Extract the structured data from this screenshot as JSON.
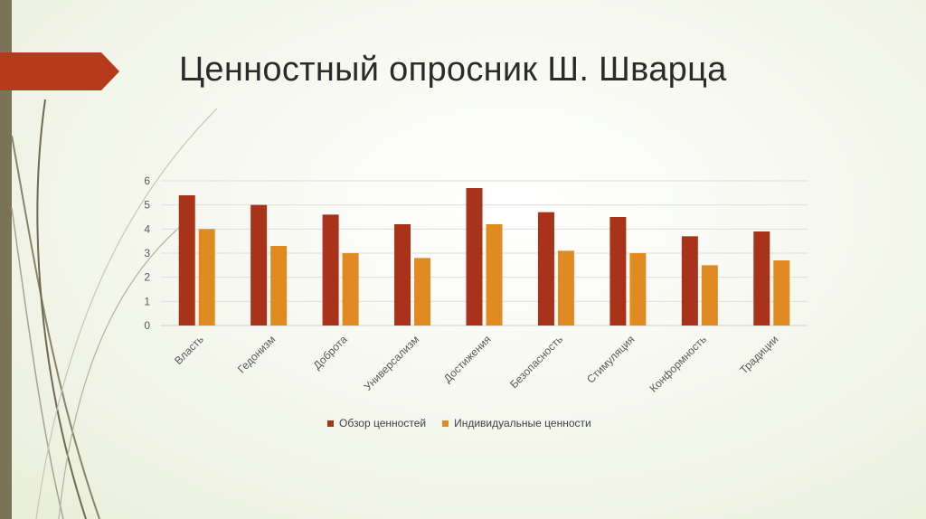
{
  "slide": {
    "title": "Ценностный опросник Ш. Шварца"
  },
  "colors": {
    "series1": "#a8321a",
    "series2": "#e08a22",
    "accent_arrow": "#b83a1c",
    "strip": "#7a7358"
  },
  "chart_data": {
    "type": "bar",
    "categories": [
      "Власть",
      "Гедонизм",
      "Доброта",
      "Универсализм",
      "Достижения",
      "Безопасность",
      "Стимуляция",
      "Конформность",
      "Традиции"
    ],
    "series": [
      {
        "name": "Обзор ценностей",
        "values": [
          5.4,
          5.0,
          4.6,
          4.2,
          5.7,
          4.7,
          4.5,
          3.7,
          3.9
        ]
      },
      {
        "name": "Индивидуальные ценности",
        "values": [
          4.0,
          3.3,
          3.0,
          2.8,
          4.2,
          3.1,
          3.0,
          2.5,
          2.7
        ]
      }
    ],
    "ylim": [
      0,
      6
    ],
    "yticks": [
      "0",
      "1",
      "2",
      "3",
      "4",
      "5",
      "6"
    ],
    "grid": true,
    "legend": "bottom"
  }
}
